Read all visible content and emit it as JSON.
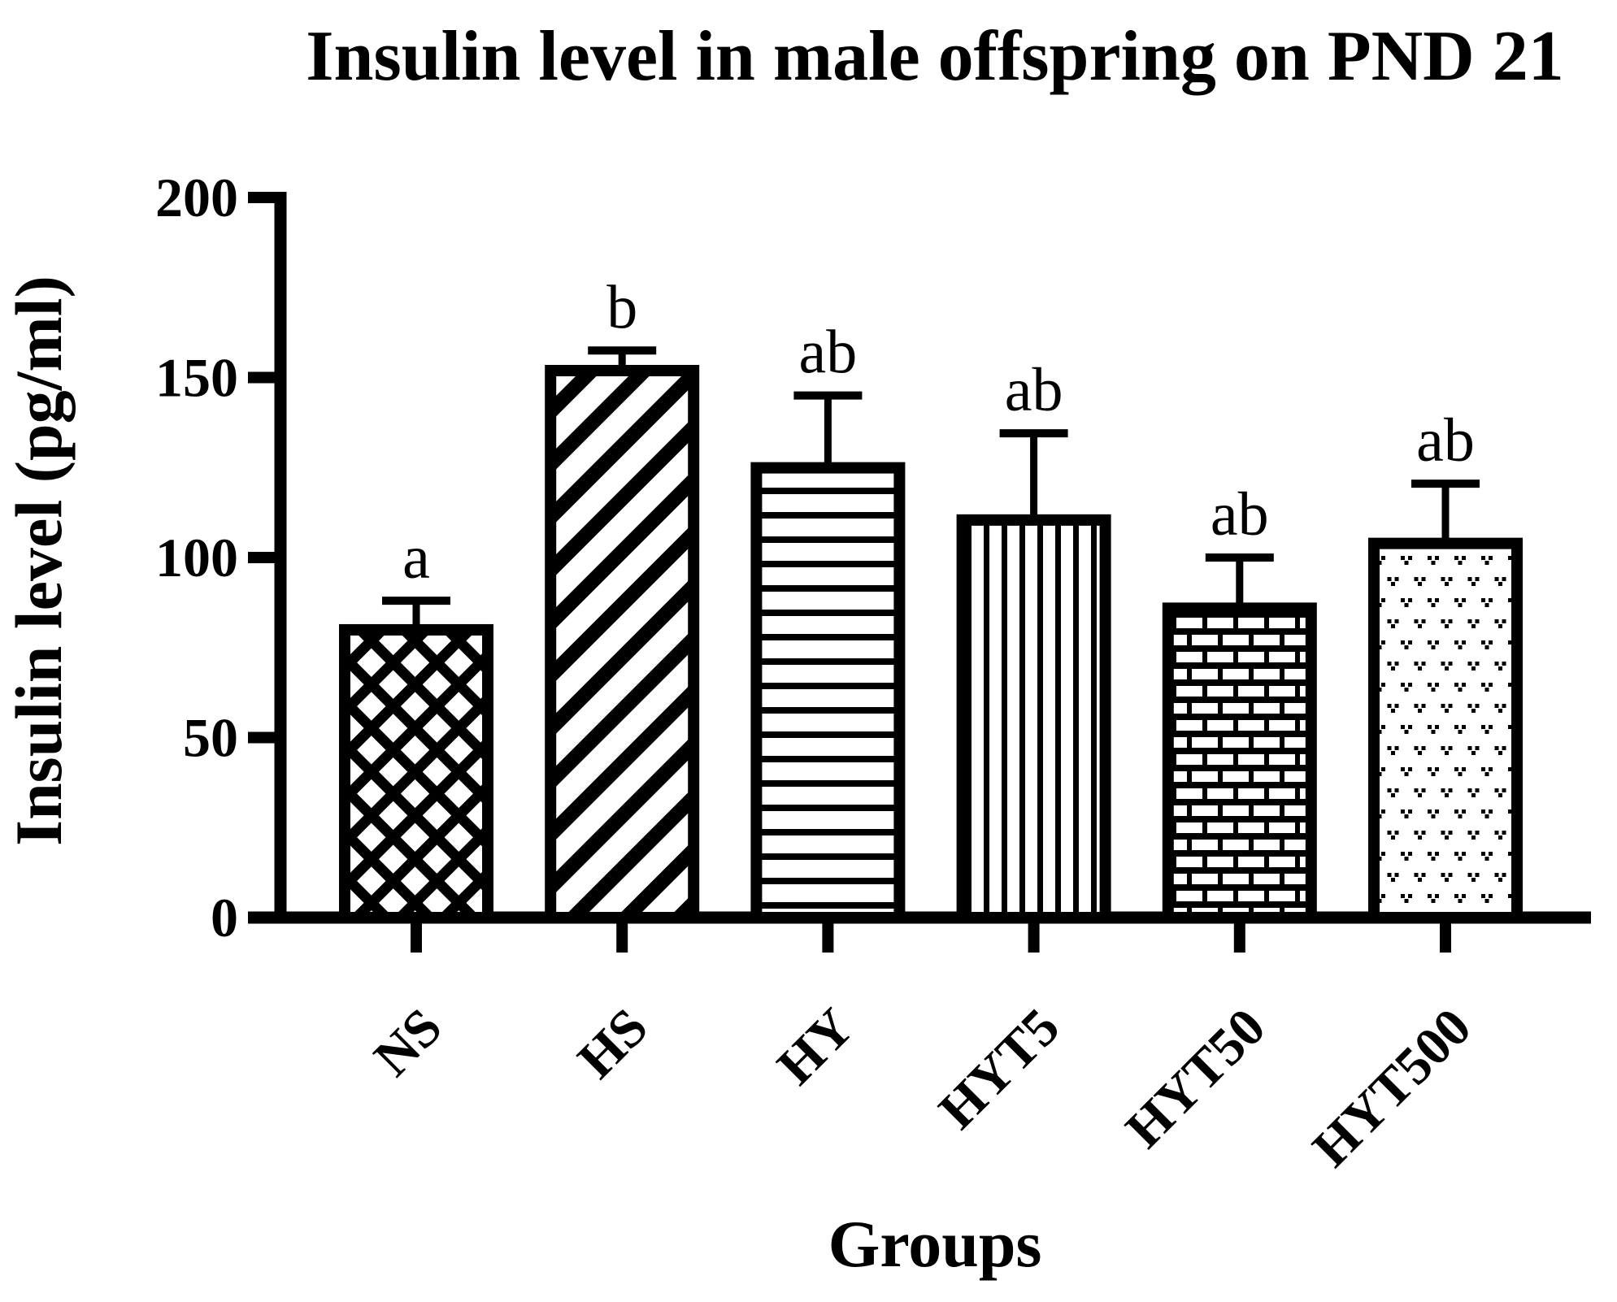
{
  "chart_data": {
    "type": "bar",
    "title": "Insulin level in male offspring on PND 21",
    "xlabel": "Groups",
    "ylabel": "Insulin level (pg/ml)",
    "ylim": [
      0,
      200
    ],
    "yticks": [
      0,
      50,
      100,
      150,
      200
    ],
    "categories": [
      "NS",
      "HS",
      "HY",
      "HYT5",
      "HYT50",
      "HYT500"
    ],
    "values": [
      81.5,
      153.5,
      126.5,
      112,
      87.5,
      105.5
    ],
    "error_bar_tops": [
      88,
      157.5,
      145,
      134.5,
      100,
      120.5
    ],
    "significance_labels": [
      "a",
      "b",
      "ab",
      "ab",
      "ab",
      "ab"
    ],
    "bar_patterns": [
      "crosshatch",
      "diagonal-stripes",
      "horizontal-lines",
      "vertical-lines",
      "bricks",
      "dots"
    ],
    "grid": false,
    "legend": "none",
    "x_tick_label_rotation_deg": 45
  },
  "colors": {
    "foreground": "#000000",
    "background": "#ffffff",
    "bar_fill": "#ffffff",
    "bar_stroke": "#000000"
  }
}
